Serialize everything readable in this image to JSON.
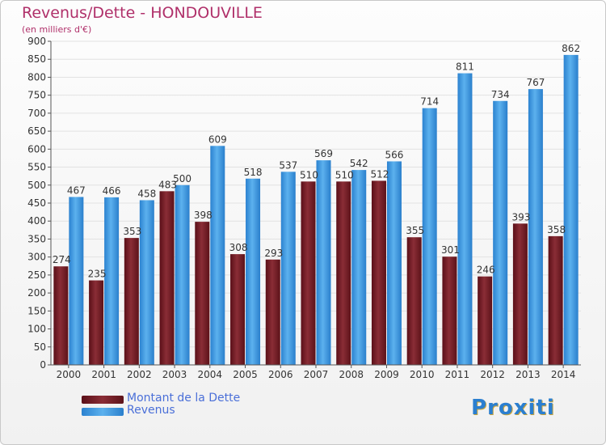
{
  "header": {
    "title": "Revenus/Dette - HONDOUVILLE",
    "subtitle": "(en milliers d'€)"
  },
  "logo": {
    "text": "Proxiti"
  },
  "colors": {
    "dette": "#7a1f28",
    "revenus": "#3d97e0",
    "axis": "#555555",
    "grid": "#e2e2e2",
    "title": "#b0306a",
    "legend_text": "#4a6fd8"
  },
  "chart_data": {
    "type": "bar",
    "title": "Revenus/Dette - HONDOUVILLE",
    "subtitle": "(en milliers d'€)",
    "xlabel": "",
    "ylabel": "",
    "ylim": [
      0,
      900
    ],
    "ytick_step": 50,
    "grid": true,
    "legend_position": "bottom-left",
    "categories": [
      "2000",
      "2001",
      "2002",
      "2003",
      "2004",
      "2005",
      "2006",
      "2007",
      "2008",
      "2009",
      "2010",
      "2011",
      "2012",
      "2013",
      "2014"
    ],
    "series": [
      {
        "name": "Montant de la Dette",
        "values": [
          274,
          235,
          353,
          483,
          398,
          308,
          293,
          510,
          510,
          512,
          355,
          301,
          246,
          393,
          358
        ]
      },
      {
        "name": "Revenus",
        "values": [
          467,
          466,
          458,
          500,
          609,
          518,
          537,
          569,
          542,
          566,
          714,
          811,
          734,
          767,
          862
        ]
      }
    ]
  }
}
